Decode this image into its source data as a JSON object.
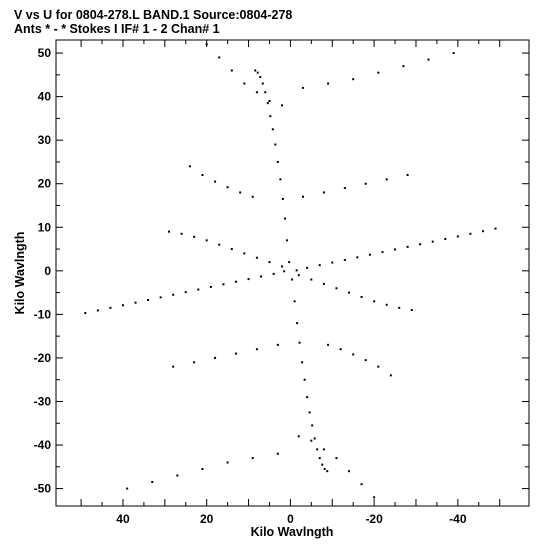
{
  "title": {
    "line1": "V vs U for 0804-278.L BAND.1   Source:0804-278",
    "line2": "Ants * - *    Stokes I  IF# 1 - 2  Chan# 1"
  },
  "chart_data": {
    "type": "scatter",
    "title": "V vs U for 0804-278.L BAND.1   Source:0804-278",
    "subtitle": "Ants * - *    Stokes I  IF# 1 - 2  Chan# 1",
    "xlabel": "Kilo Wavlngth",
    "ylabel": "Kilo Wavlngth",
    "xlim": [
      56,
      -57
    ],
    "ylim": [
      -54,
      53
    ],
    "x_reversed": true,
    "x_ticks": [
      40,
      20,
      0,
      -20,
      -40
    ],
    "y_ticks": [
      50,
      40,
      30,
      20,
      10,
      0,
      -10,
      -20,
      -30,
      -40,
      -50
    ],
    "grid": false,
    "legend": "none",
    "marker_color": "#000000",
    "series": [
      {
        "description_points": "u-v coverage tracks (kilo wavelengths): point-symmetric pairs (u,v) and (-u,-v)",
        "tracks": [
          {
            "u": [
              0.3,
              0.8,
              1.3,
              1.8,
              2.4,
              3.0,
              3.6,
              4.2,
              4.8,
              5.4,
              6.0,
              6.6,
              7.2,
              7.8,
              8.4
            ],
            "v": [
              2.0,
              7.0,
              12.0,
              16.5,
              21.0,
              25.0,
              29.0,
              32.5,
              35.5,
              38.5,
              41.0,
              43.0,
              44.5,
              45.5,
              46.0
            ]
          },
          {
            "u": [
              -0.4,
              -1.0,
              -1.6,
              -2.2,
              -2.8,
              -3.4,
              -4.0,
              -4.6,
              -5.2,
              -5.8,
              -6.4,
              -7.0,
              -7.6,
              -8.2,
              -8.8
            ],
            "v": [
              -2.0,
              -7.0,
              -12.0,
              -16.5,
              -21.0,
              -25.0,
              -29.0,
              -32.5,
              -35.5,
              -38.5,
              -41.0,
              -43.0,
              -44.5,
              -45.5,
              -46.0
            ]
          },
          {
            "u": [
              1.5,
              4.0,
              7.0,
              10.0,
              13.0,
              16.0,
              19.0,
              22.0,
              25.0,
              28.0,
              31.0,
              34.0,
              37.0,
              40.0,
              43.0,
              46.0,
              49.0
            ],
            "v": [
              -0.1,
              -0.7,
              -1.3,
              -1.9,
              -2.5,
              -3.1,
              -3.7,
              -4.3,
              -4.9,
              -5.5,
              -6.1,
              -6.7,
              -7.3,
              -7.9,
              -8.5,
              -9.1,
              -9.7
            ]
          },
          {
            "u": [
              -1.5,
              -4.0,
              -7.0,
              -10.0,
              -13.0,
              -16.0,
              -19.0,
              -22.0,
              -25.0,
              -28.0,
              -31.0,
              -34.0,
              -37.0,
              -40.0,
              -43.0,
              -46.0,
              -49.0
            ],
            "v": [
              0.1,
              0.7,
              1.3,
              1.9,
              2.5,
              3.1,
              3.7,
              4.3,
              4.9,
              5.5,
              6.1,
              6.7,
              7.3,
              7.9,
              8.5,
              9.1,
              9.7
            ]
          },
          {
            "u": [
              2.0,
              5.0,
              8.0,
              11.0,
              14.0,
              17.0,
              20.0,
              23.0,
              26.0,
              29.0
            ],
            "v": [
              1.0,
              2.0,
              3.0,
              4.0,
              5.0,
              6.0,
              7.0,
              7.8,
              8.5,
              9.0
            ]
          },
          {
            "u": [
              -2.0,
              -5.0,
              -8.0,
              -11.0,
              -14.0,
              -17.0,
              -20.0,
              -23.0,
              -26.0,
              -29.0
            ],
            "v": [
              -1.0,
              -2.0,
              -3.0,
              -4.0,
              -5.0,
              -6.0,
              -7.0,
              -7.8,
              -8.5,
              -9.0
            ]
          },
          {
            "u": [
              24.0,
              21.0,
              18.0,
              15.0,
              12.0,
              9.0
            ],
            "v": [
              24.0,
              22.0,
              20.5,
              19.2,
              18.0,
              17.0
            ]
          },
          {
            "u": [
              -24.0,
              -21.0,
              -18.0,
              -15.0,
              -12.0,
              -9.0
            ],
            "v": [
              -24.0,
              -22.0,
              -20.5,
              -19.2,
              -18.0,
              -17.0
            ]
          },
          {
            "u": [
              -3.0,
              -8.0,
              -13.0,
              -18.0,
              -23.0,
              -28.0
            ],
            "v": [
              17.0,
              18.0,
              19.0,
              20.0,
              21.0,
              22.0
            ]
          },
          {
            "u": [
              3.0,
              8.0,
              13.0,
              18.0,
              23.0,
              28.0
            ],
            "v": [
              -17.0,
              -18.0,
              -19.0,
              -20.0,
              -21.0,
              -22.0
            ]
          },
          {
            "u": [
              20.0,
              17.0,
              14.0,
              11.0,
              8.0,
              5.0,
              2.0
            ],
            "v": [
              52.0,
              49.0,
              46.0,
              43.0,
              41.0,
              39.0,
              38.0
            ]
          },
          {
            "u": [
              -20.0,
              -17.0,
              -14.0,
              -11.0,
              -8.0,
              -5.0,
              -2.0
            ],
            "v": [
              -52.0,
              -49.0,
              -46.0,
              -43.0,
              -41.0,
              -39.0,
              -38.0
            ]
          },
          {
            "u": [
              -3.0,
              -9.0,
              -15.0,
              -21.0,
              -27.0,
              -33.0,
              -39.0
            ],
            "v": [
              42.0,
              43.0,
              44.0,
              45.5,
              47.0,
              48.5,
              50.0
            ]
          },
          {
            "u": [
              3.0,
              9.0,
              15.0,
              21.0,
              27.0,
              33.0,
              39.0
            ],
            "v": [
              -42.0,
              -43.0,
              -44.0,
              -45.5,
              -47.0,
              -48.5,
              -50.0
            ]
          }
        ]
      }
    ]
  }
}
